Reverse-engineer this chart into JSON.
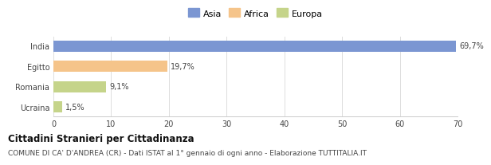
{
  "categories": [
    "India",
    "Egitto",
    "Romania",
    "Ucraina"
  ],
  "values": [
    69.7,
    19.7,
    9.1,
    1.5
  ],
  "labels": [
    "69,7%",
    "19,7%",
    "9,1%",
    "1,5%"
  ],
  "bar_colors": [
    "#7b96d2",
    "#f5c48a",
    "#c5d48a",
    "#c5d48a"
  ],
  "legend": [
    {
      "label": "Asia",
      "color": "#7b96d2"
    },
    {
      "label": "Africa",
      "color": "#f5c48a"
    },
    {
      "label": "Europa",
      "color": "#c5d48a"
    }
  ],
  "xlim": [
    0,
    70
  ],
  "xticks": [
    0,
    10,
    20,
    30,
    40,
    50,
    60,
    70
  ],
  "title": "Cittadini Stranieri per Cittadinanza",
  "subtitle": "COMUNE DI CA' D'ANDREA (CR) - Dati ISTAT al 1° gennaio di ogni anno - Elaborazione TUTTITALIA.IT",
  "bg_color": "#ffffff",
  "plot_bg_color": "#ffffff",
  "title_fontsize": 8.5,
  "subtitle_fontsize": 6.5,
  "tick_fontsize": 7,
  "label_fontsize": 7,
  "legend_fontsize": 8
}
